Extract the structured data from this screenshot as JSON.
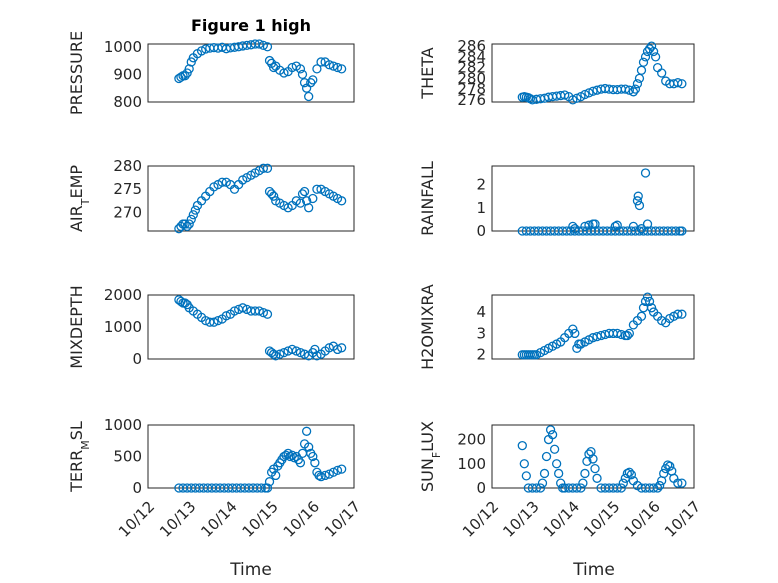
{
  "title": "Figure 1 high",
  "xlabel": "Time",
  "x_ticks": [
    "10/12",
    "10/13",
    "10/14",
    "10/15",
    "10/16",
    "10/17"
  ],
  "marker_color": "#0072BD",
  "chart_data": [
    {
      "type": "scatter",
      "ylabel": "PRESSURE",
      "ylim": [
        800,
        1010
      ],
      "yticks": [
        800,
        900,
        1000
      ],
      "grid": true,
      "series": [
        {
          "x": [
            12.75,
            12.8,
            12.85,
            12.9,
            12.95,
            13.0,
            13.05,
            13.1,
            13.2,
            13.3,
            13.4,
            13.5,
            13.6,
            13.7,
            13.8,
            13.9,
            14.0,
            14.1,
            14.2,
            14.3,
            14.4,
            14.5,
            14.6,
            14.7,
            14.8,
            14.9,
            14.95,
            15.0,
            15.05,
            15.1,
            15.2,
            15.3,
            15.4,
            15.5,
            15.6,
            15.7,
            15.75,
            15.8,
            15.85,
            15.9,
            15.95,
            16.0,
            16.1,
            16.2,
            16.3,
            16.4,
            16.5,
            16.6,
            16.7
          ],
          "y": [
            885,
            890,
            895,
            895,
            905,
            920,
            945,
            960,
            975,
            985,
            992,
            995,
            997,
            995,
            998,
            993,
            996,
            998,
            1000,
            1003,
            1005,
            1007,
            1010,
            1010,
            1005,
            1000,
            950,
            940,
            925,
            930,
            915,
            905,
            910,
            925,
            930,
            920,
            900,
            870,
            850,
            820,
            870,
            880,
            920,
            945,
            945,
            935,
            930,
            925,
            920
          ]
        }
      ]
    },
    {
      "type": "scatter",
      "ylabel": "THETA",
      "ylim": [
        275.6,
        286.4
      ],
      "yticks": [
        276,
        278,
        280,
        282,
        284,
        286
      ],
      "grid": true,
      "series": [
        {
          "x": [
            12.75,
            12.8,
            12.85,
            12.9,
            12.95,
            13.0,
            13.1,
            13.2,
            13.3,
            13.4,
            13.5,
            13.6,
            13.7,
            13.8,
            13.9,
            14.0,
            14.1,
            14.2,
            14.3,
            14.4,
            14.5,
            14.6,
            14.7,
            14.8,
            14.9,
            15.0,
            15.1,
            15.2,
            15.3,
            15.4,
            15.5,
            15.55,
            15.6,
            15.65,
            15.7,
            15.75,
            15.8,
            15.85,
            15.9,
            15.95,
            16.0,
            16.05,
            16.1,
            16.2,
            16.3,
            16.4,
            16.5,
            16.6,
            16.7
          ],
          "y": [
            276.5,
            276.6,
            276.5,
            276.4,
            276.2,
            276.0,
            276.1,
            276.2,
            276.3,
            276.5,
            276.6,
            276.7,
            276.8,
            276.9,
            276.6,
            276.0,
            276.3,
            276.6,
            277.0,
            277.3,
            277.6,
            277.8,
            278.0,
            278.1,
            278.0,
            277.9,
            277.9,
            278.0,
            278.0,
            277.8,
            277.5,
            278.0,
            279.0,
            280.0,
            281.5,
            283.0,
            284.0,
            285.0,
            285.5,
            286.0,
            285.0,
            284.0,
            282.0,
            281.0,
            279.5,
            279.0,
            279.0,
            279.2,
            279.0
          ]
        }
      ]
    },
    {
      "type": "scatter",
      "ylabel": "AIR_TEMP",
      "ylim": [
        266,
        280
      ],
      "yticks": [
        270,
        275,
        280
      ],
      "grid": true,
      "series": [
        {
          "x": [
            12.75,
            12.8,
            12.85,
            12.9,
            12.95,
            13.0,
            13.05,
            13.1,
            13.15,
            13.2,
            13.3,
            13.4,
            13.5,
            13.6,
            13.7,
            13.8,
            13.9,
            14.0,
            14.1,
            14.2,
            14.3,
            14.4,
            14.5,
            14.6,
            14.7,
            14.8,
            14.9,
            14.95,
            15.0,
            15.05,
            15.1,
            15.2,
            15.3,
            15.4,
            15.5,
            15.6,
            15.7,
            15.75,
            15.8,
            15.85,
            15.9,
            16.0,
            16.1,
            16.2,
            16.3,
            16.4,
            16.5,
            16.6,
            16.7
          ],
          "y": [
            266.5,
            267.0,
            267.5,
            267.5,
            267.0,
            267.5,
            268.5,
            269.5,
            270.5,
            271.5,
            272.5,
            273.5,
            274.5,
            275.5,
            276.0,
            276.5,
            276.5,
            276.0,
            275.0,
            276.0,
            277.0,
            277.5,
            278.0,
            278.5,
            279.0,
            279.5,
            279.5,
            274.5,
            274.0,
            273.5,
            272.5,
            272.0,
            271.5,
            271.0,
            271.5,
            272.5,
            272.0,
            274.0,
            274.5,
            272.5,
            271.0,
            273.0,
            275.0,
            275.0,
            274.5,
            274.0,
            273.5,
            273.0,
            272.5
          ]
        }
      ]
    },
    {
      "type": "scatter",
      "ylabel": "RAINFALL",
      "ylim": [
        0,
        2.8
      ],
      "yticks": [
        0,
        1,
        2
      ],
      "grid": true,
      "series": [
        {
          "x": [
            12.75,
            12.85,
            12.95,
            13.05,
            13.15,
            13.25,
            13.35,
            13.45,
            13.55,
            13.65,
            13.75,
            13.85,
            13.95,
            14.05,
            14.15,
            14.25,
            14.35,
            14.45,
            14.55,
            14.65,
            14.75,
            14.85,
            14.95,
            15.05,
            15.15,
            15.25,
            15.35,
            15.45,
            15.55,
            15.65,
            15.75,
            15.85,
            15.95,
            16.05,
            16.15,
            16.25,
            16.35,
            16.45,
            16.55,
            16.65,
            16.7,
            14.0,
            14.05,
            14.3,
            14.4,
            14.5,
            14.55,
            15.05,
            15.1,
            15.5,
            15.6,
            15.62,
            15.65,
            15.7,
            15.8,
            15.85
          ],
          "y": [
            0,
            0,
            0,
            0,
            0,
            0,
            0,
            0,
            0,
            0,
            0,
            0,
            0,
            0,
            0,
            0,
            0,
            0,
            0,
            0,
            0,
            0,
            0,
            0,
            0,
            0,
            0,
            0,
            0,
            0,
            0,
            0,
            0,
            0,
            0,
            0,
            0,
            0,
            0,
            0,
            0,
            0.2,
            0.1,
            0.2,
            0.25,
            0.3,
            0.3,
            0.2,
            0.25,
            0.2,
            1.3,
            1.5,
            1.1,
            0.1,
            2.5,
            0.3
          ]
        }
      ]
    },
    {
      "type": "scatter",
      "ylabel": "MIXDEPTH",
      "ylim": [
        0,
        2000
      ],
      "yticks": [
        0,
        1000,
        2000
      ],
      "grid": true,
      "series": [
        {
          "x": [
            12.75,
            12.8,
            12.85,
            12.9,
            12.95,
            13.0,
            13.1,
            13.2,
            13.3,
            13.4,
            13.5,
            13.6,
            13.7,
            13.8,
            13.9,
            14.0,
            14.1,
            14.2,
            14.3,
            14.4,
            14.5,
            14.6,
            14.7,
            14.8,
            14.9,
            14.95,
            15.0,
            15.05,
            15.1,
            15.2,
            15.3,
            15.4,
            15.5,
            15.6,
            15.7,
            15.8,
            15.9,
            16.0,
            16.05,
            16.1,
            16.2,
            16.3,
            16.4,
            16.5,
            16.6,
            16.7
          ],
          "y": [
            1850,
            1800,
            1750,
            1750,
            1700,
            1600,
            1500,
            1400,
            1300,
            1200,
            1150,
            1150,
            1200,
            1250,
            1350,
            1400,
            1500,
            1550,
            1600,
            1550,
            1500,
            1500,
            1500,
            1450,
            1400,
            250,
            200,
            150,
            100,
            150,
            200,
            250,
            300,
            250,
            200,
            150,
            100,
            200,
            300,
            100,
            150,
            250,
            350,
            400,
            300,
            350
          ]
        }
      ]
    },
    {
      "type": "scatter",
      "ylabel": "H2OMIXRA",
      "ylim": [
        1.8,
        4.8
      ],
      "yticks": [
        2,
        3,
        4
      ],
      "grid": true,
      "series": [
        {
          "x": [
            12.75,
            12.8,
            12.85,
            12.9,
            12.95,
            13.0,
            13.05,
            13.1,
            13.2,
            13.3,
            13.4,
            13.5,
            13.6,
            13.7,
            13.8,
            13.9,
            14.0,
            14.05,
            14.1,
            14.15,
            14.2,
            14.3,
            14.4,
            14.5,
            14.6,
            14.7,
            14.8,
            14.9,
            15.0,
            15.1,
            15.2,
            15.3,
            15.35,
            15.4,
            15.5,
            15.6,
            15.7,
            15.75,
            15.8,
            15.85,
            15.9,
            15.95,
            16.0,
            16.1,
            16.2,
            16.3,
            16.4,
            16.5,
            16.6,
            16.7
          ],
          "y": [
            2.0,
            2.0,
            2.0,
            2.0,
            2.0,
            2.0,
            2.0,
            2.0,
            2.1,
            2.2,
            2.3,
            2.4,
            2.5,
            2.6,
            2.8,
            3.0,
            3.2,
            3.0,
            2.3,
            2.5,
            2.5,
            2.6,
            2.7,
            2.8,
            2.85,
            2.9,
            2.95,
            3.0,
            3.0,
            3.0,
            2.95,
            2.9,
            2.9,
            3.0,
            3.4,
            3.6,
            3.8,
            4.2,
            4.5,
            4.7,
            4.5,
            4.2,
            4.0,
            3.8,
            3.6,
            3.5,
            3.7,
            3.8,
            3.9,
            3.9
          ]
        }
      ]
    },
    {
      "type": "scatter",
      "ylabel": "TERR_MSL",
      "ylim": [
        0,
        1000
      ],
      "yticks": [
        0,
        500,
        1000
      ],
      "grid": true,
      "series": [
        {
          "x": [
            12.75,
            12.85,
            12.95,
            13.05,
            13.15,
            13.25,
            13.35,
            13.45,
            13.55,
            13.65,
            13.75,
            13.85,
            13.95,
            14.05,
            14.15,
            14.25,
            14.35,
            14.45,
            14.55,
            14.65,
            14.75,
            14.85,
            14.9,
            14.95,
            15.0,
            15.05,
            15.1,
            15.15,
            15.2,
            15.25,
            15.3,
            15.35,
            15.4,
            15.45,
            15.5,
            15.55,
            15.6,
            15.65,
            15.7,
            15.75,
            15.8,
            15.85,
            15.9,
            15.95,
            16.0,
            16.05,
            16.1,
            16.15,
            16.2,
            16.3,
            16.4,
            16.5,
            16.6,
            16.7
          ],
          "y": [
            0,
            0,
            0,
            0,
            0,
            0,
            0,
            0,
            0,
            0,
            0,
            0,
            0,
            0,
            0,
            0,
            0,
            0,
            0,
            0,
            0,
            0,
            0,
            100,
            250,
            300,
            200,
            350,
            400,
            450,
            500,
            520,
            550,
            500,
            520,
            480,
            500,
            450,
            400,
            550,
            700,
            900,
            650,
            550,
            500,
            400,
            250,
            200,
            180,
            200,
            220,
            250,
            280,
            300
          ]
        }
      ]
    },
    {
      "type": "scatter",
      "ylabel": "SUN_FLUX",
      "ylim": [
        0,
        260
      ],
      "yticks": [
        0,
        100,
        200
      ],
      "grid": true,
      "series": [
        {
          "x": [
            12.75,
            12.8,
            12.85,
            12.9,
            13.0,
            13.1,
            13.2,
            13.25,
            13.3,
            13.35,
            13.4,
            13.45,
            13.5,
            13.55,
            13.6,
            13.65,
            13.7,
            13.75,
            13.8,
            13.9,
            14.0,
            14.1,
            14.2,
            14.25,
            14.3,
            14.35,
            14.4,
            14.45,
            14.5,
            14.55,
            14.6,
            14.7,
            14.8,
            14.9,
            15.0,
            15.1,
            15.2,
            15.25,
            15.3,
            15.35,
            15.4,
            15.45,
            15.5,
            15.6,
            15.7,
            15.8,
            15.9,
            16.0,
            16.1,
            16.15,
            16.2,
            16.25,
            16.3,
            16.35,
            16.4,
            16.45,
            16.5,
            16.6,
            16.7
          ],
          "y": [
            175,
            100,
            50,
            0,
            0,
            0,
            0,
            20,
            60,
            130,
            200,
            240,
            220,
            160,
            100,
            60,
            20,
            0,
            0,
            0,
            0,
            0,
            0,
            20,
            60,
            110,
            140,
            150,
            120,
            80,
            40,
            0,
            0,
            0,
            0,
            0,
            0,
            20,
            40,
            60,
            65,
            55,
            30,
            10,
            0,
            0,
            0,
            0,
            0,
            10,
            30,
            60,
            80,
            95,
            90,
            70,
            40,
            20,
            20
          ]
        }
      ]
    }
  ]
}
